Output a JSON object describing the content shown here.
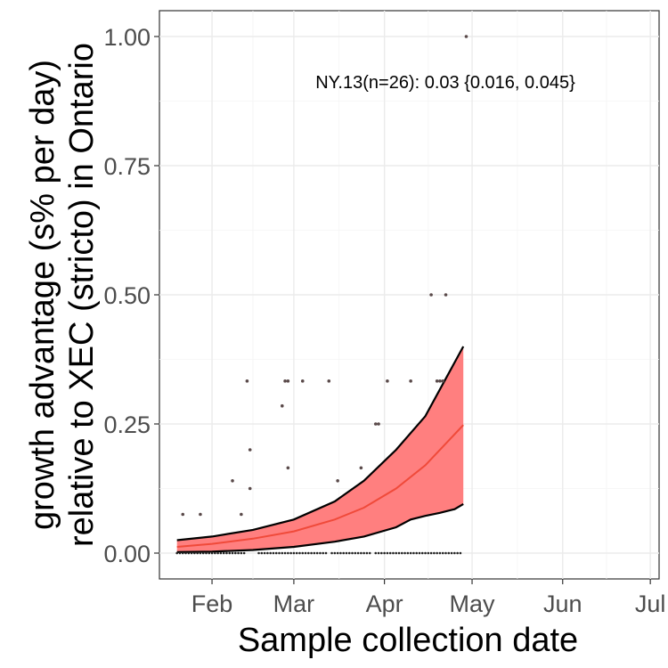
{
  "chart_data": {
    "type": "line",
    "xlabel": "Sample collection date",
    "ylabel_line1": "growth advantage (s% per day)",
    "ylabel_line2": "relative to XEC (stricto) in Ontario",
    "annotation": "NY.13(n=26): 0.03 {0.016, 0.045}",
    "x_axis": {
      "type": "date",
      "range": [
        "2025-01-14",
        "2025-07-04"
      ],
      "ticks": [
        {
          "label": "Feb",
          "date": "2025-02-01"
        },
        {
          "label": "Mar",
          "date": "2025-03-01"
        },
        {
          "label": "Apr",
          "date": "2025-04-01"
        },
        {
          "label": "May",
          "date": "2025-05-01"
        },
        {
          "label": "Jun",
          "date": "2025-06-01"
        },
        {
          "label": "Jul",
          "date": "2025-07-01"
        }
      ]
    },
    "y_axis": {
      "range": [
        -0.05,
        1.05
      ],
      "ticks": [
        {
          "label": "0.00",
          "value": 0.0
        },
        {
          "label": "0.25",
          "value": 0.25
        },
        {
          "label": "0.50",
          "value": 0.5
        },
        {
          "label": "0.75",
          "value": 0.75
        },
        {
          "label": "1.00",
          "value": 1.0
        }
      ]
    },
    "grid": true,
    "colors": {
      "fit_line": "#f04a3a",
      "ribbon": "#ff7f7f",
      "points": "#5a4a4a",
      "bound_lines": "#000000"
    },
    "series": [
      {
        "role": "fit",
        "x": [
          "2025-01-20",
          "2025-02-01",
          "2025-02-15",
          "2025-03-01",
          "2025-03-15",
          "2025-03-25",
          "2025-04-05",
          "2025-04-15",
          "2025-04-28"
        ],
        "y": [
          0.012,
          0.018,
          0.028,
          0.042,
          0.065,
          0.088,
          0.125,
          0.17,
          0.248
        ]
      },
      {
        "role": "upper_bound",
        "x": [
          "2025-01-20",
          "2025-02-01",
          "2025-02-15",
          "2025-03-01",
          "2025-03-15",
          "2025-03-25",
          "2025-04-05",
          "2025-04-15",
          "2025-04-28"
        ],
        "y": [
          0.025,
          0.032,
          0.045,
          0.065,
          0.1,
          0.14,
          0.2,
          0.265,
          0.4
        ]
      },
      {
        "role": "lower_bound",
        "x": [
          "2025-01-20",
          "2025-02-01",
          "2025-02-15",
          "2025-03-01",
          "2025-03-15",
          "2025-03-25",
          "2025-04-05",
          "2025-04-10",
          "2025-04-15",
          "2025-04-20",
          "2025-04-25",
          "2025-04-28"
        ],
        "y": [
          0.002,
          0.003,
          0.006,
          0.012,
          0.022,
          0.032,
          0.05,
          0.065,
          0.072,
          0.078,
          0.085,
          0.095
        ]
      },
      {
        "role": "observations",
        "x": [
          "2025-01-22",
          "2025-01-28",
          "2025-02-08",
          "2025-02-11",
          "2025-02-13",
          "2025-02-14",
          "2025-02-14",
          "2025-02-25",
          "2025-02-26",
          "2025-02-27",
          "2025-02-27",
          "2025-03-04",
          "2025-03-13",
          "2025-03-16",
          "2025-03-24",
          "2025-03-29",
          "2025-03-30",
          "2025-04-02",
          "2025-04-10",
          "2025-04-17",
          "2025-04-19",
          "2025-04-20",
          "2025-04-21",
          "2025-04-22",
          "2025-04-29"
        ],
        "y": [
          0.075,
          0.075,
          0.14,
          0.075,
          0.333,
          0.2,
          0.125,
          0.285,
          0.333,
          0.165,
          0.333,
          0.333,
          0.333,
          0.14,
          0.165,
          0.25,
          0.25,
          0.333,
          0.333,
          0.5,
          0.333,
          0.333,
          0.333,
          0.5,
          1.0
        ]
      },
      {
        "role": "zero_observations",
        "ranges": [
          {
            "from": "2025-01-20",
            "to": "2025-02-12"
          },
          {
            "from": "2025-02-17",
            "to": "2025-03-12"
          },
          {
            "from": "2025-03-14",
            "to": "2025-03-27"
          },
          {
            "from": "2025-03-29",
            "to": "2025-04-27"
          }
        ],
        "y": 0.0
      }
    ]
  }
}
